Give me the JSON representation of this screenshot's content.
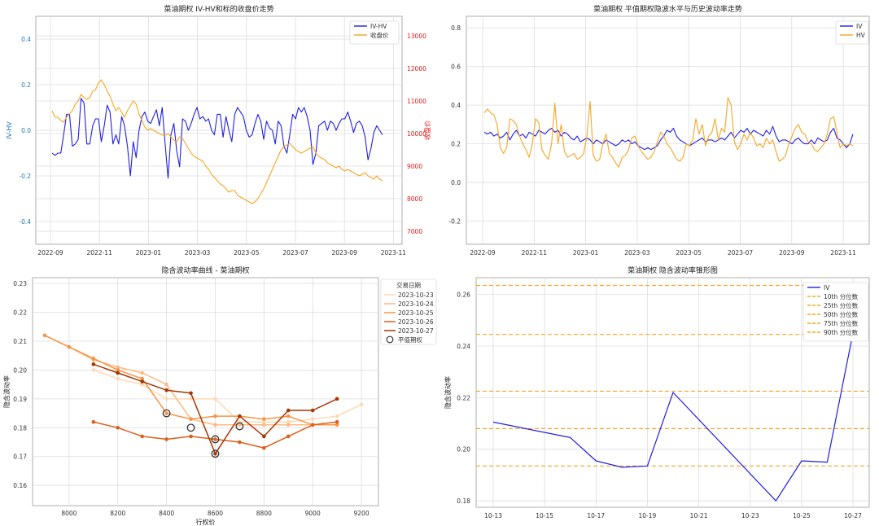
{
  "colors": {
    "blue": "#1f1fe6",
    "orange": "#f6a623",
    "red": "#e41a1c",
    "grid": "#dddddd",
    "axis": "#999999"
  },
  "chart_data": [
    {
      "id": "c1",
      "type": "line",
      "title": "菜油期权 IV-HV和标的收盘价走势",
      "xlabel": "",
      "ylabel_left": "IV-HV",
      "ylabel_right": "收盘价",
      "xticks": [
        "2022-09",
        "2022-11",
        "2023-01",
        "2023-03",
        "2023-05",
        "2023-07",
        "2023-09",
        "2023-11"
      ],
      "ylim_left": [
        -0.5,
        0.5
      ],
      "yticks_left": [
        "-0.4",
        "-0.2",
        "0.0",
        "0.2",
        "0.4"
      ],
      "ylim_right": [
        6600,
        13600
      ],
      "yticks_right": [
        "7000",
        "8000",
        "9000",
        "10000",
        "11000",
        "12000",
        "13000"
      ],
      "series": [
        {
          "name": "IV-HV",
          "axis": "left",
          "color": "#1f1fe6",
          "values": [
            -0.1,
            -0.11,
            -0.1,
            -0.1,
            -0.02,
            0.07,
            0.07,
            -0.07,
            -0.06,
            -0.04,
            0.14,
            0.12,
            -0.06,
            -0.06,
            0.02,
            0.05,
            0.05,
            -0.05,
            0.02,
            0.11,
            0.08,
            -0.06,
            -0.02,
            -0.06,
            0.06,
            0.02,
            -0.07,
            -0.2,
            -0.05,
            -0.12,
            0.0,
            0.06,
            0.08,
            0.04,
            0.03,
            0.06,
            0.09,
            0.02,
            0.1,
            -0.06,
            -0.21,
            -0.02,
            0.03,
            -0.09,
            -0.16,
            0.05,
            0.04,
            0.0,
            0.03,
            0.07,
            0.1,
            0.05,
            0.06,
            0.04,
            0.05,
            0.0,
            -0.02,
            0.07,
            0.07,
            -0.03,
            0.06,
            0.0,
            -0.05,
            0.07,
            0.1,
            0.08,
            0.06,
            0.0,
            -0.03,
            -0.02,
            0.03,
            0.07,
            0.04,
            -0.04,
            0.04,
            0.01,
            0.0,
            -0.06,
            0.04,
            0.02,
            -0.07,
            -0.1,
            -0.02,
            0.07,
            0.05,
            0.1,
            0.08,
            0.1,
            0.06,
            0.0,
            -0.15,
            -0.1,
            0.02,
            0.03,
            0.04,
            0.0,
            0.04,
            0.03,
            0.0,
            0.03,
            0.05,
            0.05,
            0.08,
            0.04,
            -0.01,
            0.03,
            0.04,
            0.02,
            -0.03,
            -0.13,
            -0.08,
            -0.01,
            0.02,
            0.0,
            -0.02
          ]
        },
        {
          "name": "收盘价",
          "axis": "right",
          "color": "#f6a623",
          "values": [
            10700,
            10500,
            10500,
            10400,
            10350,
            10500,
            10600,
            10700,
            10900,
            11000,
            11200,
            11100,
            11050,
            11100,
            11300,
            11350,
            11550,
            11650,
            11500,
            11300,
            11150,
            10900,
            10700,
            10800,
            10650,
            10500,
            10700,
            10850,
            11000,
            10900,
            10600,
            10400,
            10200,
            10100,
            10150,
            10100,
            10050,
            10000,
            9950,
            9950,
            10000,
            9900,
            9800,
            9750,
            9900,
            9850,
            9700,
            9550,
            9400,
            9300,
            9250,
            9200,
            9150,
            9000,
            8900,
            8750,
            8650,
            8550,
            8450,
            8400,
            8300,
            8200,
            8250,
            8250,
            8100,
            8050,
            8000,
            7950,
            7900,
            7850,
            7900,
            8000,
            8150,
            8300,
            8500,
            8700,
            8900,
            9100,
            9300,
            9500,
            9600,
            9650,
            9700,
            9600,
            9500,
            9450,
            9400,
            9450,
            9500,
            9550,
            9600,
            9400,
            9300,
            9250,
            9200,
            9100,
            9050,
            9000,
            8950,
            9000,
            8900,
            8850,
            8900,
            8850,
            8800,
            8750,
            8700,
            8750,
            8800,
            8700,
            8650,
            8600,
            8700,
            8600,
            8550
          ]
        }
      ]
    },
    {
      "id": "c2",
      "type": "line",
      "title": "菜油期权 平值期权隐波水平与历史波动率走势",
      "xticks": [
        "2022-09",
        "2022-11",
        "2023-01",
        "2023-03",
        "2023-05",
        "2023-07",
        "2023-09",
        "2023-11"
      ],
      "ylim": [
        -0.32,
        0.86
      ],
      "yticks": [
        "-0.2",
        "0.0",
        "0.2",
        "0.4",
        "0.6",
        "0.8"
      ],
      "series": [
        {
          "name": "IV",
          "color": "#1f1fe6",
          "values": [
            0.26,
            0.25,
            0.26,
            0.24,
            0.25,
            0.23,
            0.24,
            0.26,
            0.22,
            0.25,
            0.27,
            0.24,
            0.25,
            0.23,
            0.26,
            0.25,
            0.24,
            0.27,
            0.26,
            0.25,
            0.27,
            0.28,
            0.26,
            0.27,
            0.24,
            0.26,
            0.25,
            0.23,
            0.22,
            0.24,
            0.21,
            0.22,
            0.23,
            0.22,
            0.2,
            0.22,
            0.21,
            0.2,
            0.22,
            0.21,
            0.2,
            0.19,
            0.2,
            0.22,
            0.21,
            0.22,
            0.2,
            0.21,
            0.19,
            0.18,
            0.17,
            0.18,
            0.17,
            0.18,
            0.19,
            0.22,
            0.24,
            0.27,
            0.26,
            0.28,
            0.24,
            0.22,
            0.21,
            0.2,
            0.19,
            0.2,
            0.21,
            0.22,
            0.23,
            0.21,
            0.22,
            0.22,
            0.21,
            0.22,
            0.23,
            0.22,
            0.24,
            0.26,
            0.23,
            0.25,
            0.27,
            0.26,
            0.28,
            0.25,
            0.27,
            0.26,
            0.25,
            0.24,
            0.27,
            0.25,
            0.29,
            0.24,
            0.21,
            0.22,
            0.22,
            0.21,
            0.2,
            0.22,
            0.23,
            0.21,
            0.2,
            0.2,
            0.22,
            0.2,
            0.23,
            0.22,
            0.21,
            0.22,
            0.26,
            0.28,
            0.23,
            0.22,
            0.2,
            0.18,
            0.2,
            0.25
          ]
        },
        {
          "name": "HV",
          "color": "#f6a623",
          "values": [
            0.36,
            0.38,
            0.36,
            0.35,
            0.3,
            0.18,
            0.15,
            0.18,
            0.33,
            0.32,
            0.3,
            0.24,
            0.2,
            0.17,
            0.13,
            0.2,
            0.33,
            0.31,
            0.17,
            0.14,
            0.12,
            0.2,
            0.41,
            0.2,
            0.3,
            0.16,
            0.13,
            0.14,
            0.15,
            0.12,
            0.13,
            0.15,
            0.24,
            0.42,
            0.14,
            0.11,
            0.12,
            0.2,
            0.25,
            0.15,
            0.13,
            0.1,
            0.08,
            0.13,
            0.14,
            0.17,
            0.23,
            0.24,
            0.19,
            0.16,
            0.14,
            0.12,
            0.13,
            0.16,
            0.21,
            0.26,
            0.24,
            0.2,
            0.18,
            0.15,
            0.12,
            0.11,
            0.13,
            0.2,
            0.19,
            0.22,
            0.33,
            0.25,
            0.3,
            0.19,
            0.24,
            0.26,
            0.33,
            0.22,
            0.28,
            0.26,
            0.44,
            0.4,
            0.21,
            0.17,
            0.2,
            0.25,
            0.22,
            0.26,
            0.23,
            0.19,
            0.2,
            0.18,
            0.23,
            0.2,
            0.22,
            0.16,
            0.11,
            0.12,
            0.14,
            0.2,
            0.24,
            0.28,
            0.3,
            0.26,
            0.25,
            0.21,
            0.2,
            0.17,
            0.16,
            0.18,
            0.2,
            0.25,
            0.33,
            0.34,
            0.26,
            0.18,
            0.2,
            0.19,
            0.2,
            0.19
          ]
        }
      ]
    },
    {
      "id": "c3",
      "type": "line",
      "title": "隐含波动率曲线 - 菜油期权",
      "xlabel": "行权价",
      "ylabel": "隐含波动率",
      "xlim": [
        7850,
        9270
      ],
      "xticks": [
        "8000",
        "8200",
        "8400",
        "8600",
        "8800",
        "9000",
        "9200"
      ],
      "ylim": [
        0.153,
        0.232
      ],
      "yticks": [
        "0.16",
        "0.17",
        "0.18",
        "0.19",
        "0.20",
        "0.21",
        "0.22",
        "0.23"
      ],
      "legend_title": "交易日期",
      "atm_label": "平值期权",
      "series": [
        {
          "name": "2023-10-23",
          "color": "#fdd9b5",
          "x": [
            8100,
            8200,
            8300,
            8400,
            8500,
            8600,
            8700,
            8800,
            8900,
            9000,
            9100,
            9200
          ],
          "y": [
            0.2,
            0.197,
            0.195,
            0.19,
            0.19,
            0.19,
            0.182,
            0.182,
            0.182,
            0.183,
            0.184,
            0.188
          ]
        },
        {
          "name": "2023-10-24",
          "color": "#fdb980",
          "x": [
            7900,
            8000,
            8100,
            8200,
            8300,
            8400,
            8500,
            8600,
            8700,
            8800,
            8900,
            9000
          ],
          "y": [
            0.212,
            0.208,
            0.2035,
            0.201,
            0.199,
            0.195,
            0.183,
            0.181,
            0.181,
            0.181,
            0.181,
            0.181
          ]
        },
        {
          "name": "2023-10-25",
          "color": "#f89445",
          "x": [
            7900,
            8000,
            8100,
            8200,
            8300,
            8400,
            8500,
            8600,
            8700,
            8800,
            8900,
            9000,
            9100
          ],
          "y": [
            0.212,
            0.208,
            0.204,
            0.2,
            0.197,
            0.185,
            0.183,
            0.184,
            0.184,
            0.183,
            0.184,
            0.181,
            0.181
          ]
        },
        {
          "name": "2023-10-26",
          "color": "#dd5f1a",
          "x": [
            8100,
            8200,
            8300,
            8400,
            8500,
            8600,
            8700,
            8800,
            8900,
            9000,
            9100
          ],
          "y": [
            0.182,
            0.18,
            0.177,
            0.176,
            0.177,
            0.176,
            0.175,
            0.173,
            0.177,
            0.181,
            0.182
          ]
        },
        {
          "name": "2023-10-27",
          "color": "#a63603",
          "x": [
            8100,
            8200,
            8300,
            8400,
            8500,
            8600,
            8700,
            8800,
            8900,
            9000,
            9100
          ],
          "y": [
            0.202,
            0.199,
            0.196,
            0.193,
            0.192,
            0.171,
            0.184,
            0.177,
            0.186,
            0.186,
            0.19
          ]
        }
      ],
      "atm": [
        {
          "x": 8400,
          "y": 0.185
        },
        {
          "x": 8500,
          "y": 0.18
        },
        {
          "x": 8600,
          "y": 0.176
        },
        {
          "x": 8600,
          "y": 0.171
        },
        {
          "x": 8700,
          "y": 0.1805
        }
      ]
    },
    {
      "id": "c4",
      "type": "line",
      "title": "菜油期权 隐含波动率锥形图",
      "xlabel": "",
      "ylabel": "隐含波动率",
      "xticks": [
        "10-13",
        "10-15",
        "10-17",
        "10-19",
        "10-21",
        "10-23",
        "10-25",
        "10-27"
      ],
      "x_start_day": 13,
      "x_end_day": 27,
      "ylim": [
        0.1775,
        0.2665
      ],
      "yticks": [
        "0.18",
        "0.20",
        "0.22",
        "0.24",
        "0.26"
      ],
      "series": [
        {
          "name": "IV",
          "color": "#1f1fe6",
          "days": [
            13,
            16,
            17,
            18,
            19,
            20,
            24,
            25,
            26,
            27
          ],
          "values": [
            0.2105,
            0.2045,
            0.1955,
            0.193,
            0.1935,
            0.222,
            0.18,
            0.1955,
            0.195,
            0.245
          ]
        }
      ],
      "percentiles": [
        {
          "name": "10th 分位数",
          "value": 0.1935
        },
        {
          "name": "25th 分位数",
          "value": 0.208
        },
        {
          "name": "50th 分位数",
          "value": 0.2225
        },
        {
          "name": "75th 分位数",
          "value": 0.2445
        },
        {
          "name": "90th 分位数",
          "value": 0.2635
        }
      ]
    }
  ]
}
